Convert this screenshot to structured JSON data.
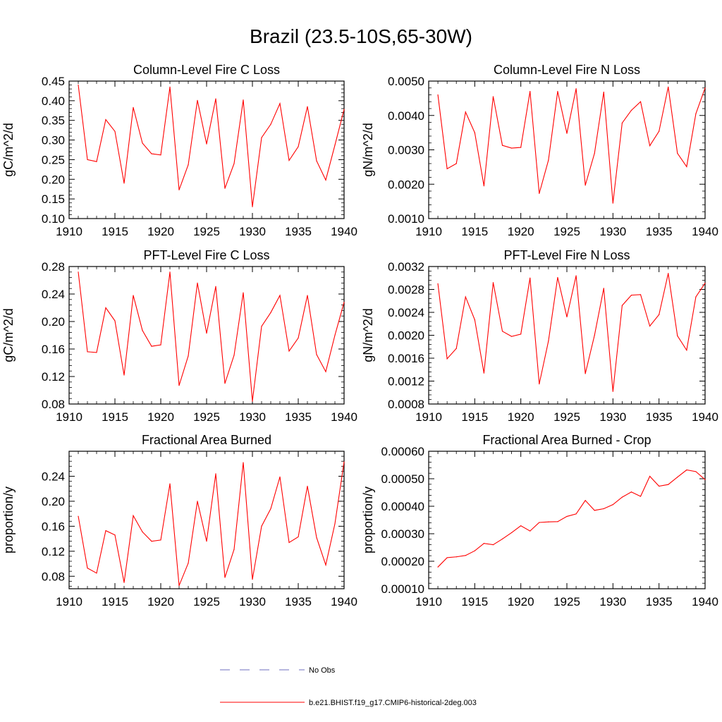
{
  "title": "Brazil (23.5-10S,65-30W)",
  "legend": {
    "items": [
      {
        "label": "No Obs",
        "color": "#6f6fbf",
        "dash": true
      },
      {
        "label": "b.e21.BHIST.f19_g17.CMIP6-historical-2deg.003",
        "color": "#ff0000",
        "dash": false
      }
    ]
  },
  "chart_data": [
    {
      "type": "line",
      "title": "Column-Level Fire C Loss",
      "ylabel": "gC/m^2/d",
      "xlim": [
        1910,
        1940
      ],
      "ylim": [
        0.1,
        0.45
      ],
      "xticks": [
        1910,
        1915,
        1920,
        1925,
        1930,
        1935,
        1940
      ],
      "xtick_labels": [
        "1910",
        "1915",
        "1920",
        "1925",
        "1930",
        "1935",
        "1940"
      ],
      "yticks": [
        0.1,
        0.15,
        0.2,
        0.25,
        0.3,
        0.35,
        0.4,
        0.45
      ],
      "ytick_labels": [
        "0.10",
        "0.15",
        "0.20",
        "0.25",
        "0.30",
        "0.35",
        "0.40",
        "0.45"
      ],
      "x": [
        1911,
        1912,
        1913,
        1914,
        1915,
        1916,
        1917,
        1918,
        1919,
        1920,
        1921,
        1922,
        1923,
        1924,
        1925,
        1926,
        1927,
        1928,
        1929,
        1930,
        1931,
        1932,
        1933,
        1934,
        1935,
        1936,
        1937,
        1938,
        1939,
        1940
      ],
      "series": [
        {
          "name": "b.e21.BHIST.f19_g17.CMIP6-historical-2deg.003",
          "color": "#ff0000",
          "values": [
            0.44,
            0.25,
            0.245,
            0.352,
            0.322,
            0.19,
            0.383,
            0.292,
            0.265,
            0.262,
            0.435,
            0.173,
            0.237,
            0.401,
            0.29,
            0.405,
            0.177,
            0.24,
            0.402,
            0.13,
            0.306,
            0.34,
            0.393,
            0.248,
            0.283,
            0.385,
            0.247,
            0.198,
            0.287,
            0.378
          ]
        }
      ]
    },
    {
      "type": "line",
      "title": "Column-Level Fire N Loss",
      "ylabel": "gN/m^2/d",
      "xlim": [
        1910,
        1940
      ],
      "ylim": [
        0.001,
        0.005
      ],
      "xticks": [
        1910,
        1915,
        1920,
        1925,
        1930,
        1935,
        1940
      ],
      "xtick_labels": [
        "1910",
        "1915",
        "1920",
        "1925",
        "1930",
        "1935",
        "1940"
      ],
      "yticks": [
        0.001,
        0.002,
        0.003,
        0.004,
        0.005
      ],
      "ytick_labels": [
        "0.0010",
        "0.0020",
        "0.0030",
        "0.0040",
        "0.0050"
      ],
      "x": [
        1911,
        1912,
        1913,
        1914,
        1915,
        1916,
        1917,
        1918,
        1919,
        1920,
        1921,
        1922,
        1923,
        1924,
        1925,
        1926,
        1927,
        1928,
        1929,
        1930,
        1931,
        1932,
        1933,
        1934,
        1935,
        1936,
        1937,
        1938,
        1939,
        1940
      ],
      "series": [
        {
          "name": "b.e21.BHIST.f19_g17.CMIP6-historical-2deg.003",
          "color": "#ff0000",
          "values": [
            0.0046,
            0.00245,
            0.0026,
            0.0041,
            0.0035,
            0.00195,
            0.00455,
            0.00313,
            0.00305,
            0.00307,
            0.0047,
            0.00173,
            0.0027,
            0.0047,
            0.00348,
            0.00478,
            0.00197,
            0.0029,
            0.00468,
            0.00145,
            0.00378,
            0.00415,
            0.0044,
            0.00312,
            0.00354,
            0.00483,
            0.0029,
            0.00251,
            0.00405,
            0.0048
          ]
        }
      ]
    },
    {
      "type": "line",
      "title": "PFT-Level Fire C Loss",
      "ylabel": "gC/m^2/d",
      "xlim": [
        1910,
        1940
      ],
      "ylim": [
        0.08,
        0.28
      ],
      "xticks": [
        1910,
        1915,
        1920,
        1925,
        1930,
        1935,
        1940
      ],
      "xtick_labels": [
        "1910",
        "1915",
        "1920",
        "1925",
        "1930",
        "1935",
        "1940"
      ],
      "yticks": [
        0.08,
        0.12,
        0.16,
        0.2,
        0.24,
        0.28
      ],
      "ytick_labels": [
        "0.08",
        "0.12",
        "0.16",
        "0.20",
        "0.24",
        "0.28"
      ],
      "x": [
        1911,
        1912,
        1913,
        1914,
        1915,
        1916,
        1917,
        1918,
        1919,
        1920,
        1921,
        1922,
        1923,
        1924,
        1925,
        1926,
        1927,
        1928,
        1929,
        1930,
        1931,
        1932,
        1933,
        1934,
        1935,
        1936,
        1937,
        1938,
        1939,
        1940
      ],
      "series": [
        {
          "name": "b.e21.BHIST.f19_g17.CMIP6-historical-2deg.003",
          "color": "#ff0000",
          "values": [
            0.272,
            0.156,
            0.155,
            0.22,
            0.201,
            0.122,
            0.238,
            0.187,
            0.164,
            0.166,
            0.272,
            0.107,
            0.15,
            0.256,
            0.183,
            0.251,
            0.11,
            0.151,
            0.242,
            0.084,
            0.193,
            0.213,
            0.238,
            0.157,
            0.176,
            0.238,
            0.152,
            0.127,
            0.18,
            0.228
          ]
        }
      ]
    },
    {
      "type": "line",
      "title": "PFT-Level Fire N Loss",
      "ylabel": "gN/m^2/d",
      "xlim": [
        1910,
        1940
      ],
      "ylim": [
        0.0008,
        0.0032
      ],
      "xticks": [
        1910,
        1915,
        1920,
        1925,
        1930,
        1935,
        1940
      ],
      "xtick_labels": [
        "1910",
        "1915",
        "1920",
        "1925",
        "1930",
        "1935",
        "1940"
      ],
      "yticks": [
        0.0008,
        0.0012,
        0.0016,
        0.002,
        0.0024,
        0.0028,
        0.0032
      ],
      "ytick_labels": [
        "0.0008",
        "0.0012",
        "0.0016",
        "0.0020",
        "0.0024",
        "0.0028",
        "0.0032"
      ],
      "x": [
        1911,
        1912,
        1913,
        1914,
        1915,
        1916,
        1917,
        1918,
        1919,
        1920,
        1921,
        1922,
        1923,
        1924,
        1925,
        1926,
        1927,
        1928,
        1929,
        1930,
        1931,
        1932,
        1933,
        1934,
        1935,
        1936,
        1937,
        1938,
        1939,
        1940
      ],
      "series": [
        {
          "name": "b.e21.BHIST.f19_g17.CMIP6-historical-2deg.003",
          "color": "#ff0000",
          "values": [
            0.0029,
            0.00159,
            0.00177,
            0.00267,
            0.00227,
            0.00134,
            0.00292,
            0.00207,
            0.00198,
            0.00202,
            0.003,
            0.00115,
            0.0019,
            0.00301,
            0.00232,
            0.00304,
            0.00133,
            0.002,
            0.00282,
            0.00102,
            0.00252,
            0.0027,
            0.00271,
            0.00216,
            0.00236,
            0.00308,
            0.00199,
            0.00174,
            0.00267,
            0.00291
          ]
        }
      ]
    },
    {
      "type": "line",
      "title": "Fractional Area Burned",
      "ylabel": "proportion/y",
      "xlim": [
        1910,
        1940
      ],
      "ylim": [
        0.06,
        0.28
      ],
      "xticks": [
        1910,
        1915,
        1920,
        1925,
        1930,
        1935,
        1940
      ],
      "xtick_labels": [
        "1910",
        "1915",
        "1920",
        "1925",
        "1930",
        "1935",
        "1940"
      ],
      "yticks": [
        0.08,
        0.12,
        0.16,
        0.2,
        0.24
      ],
      "ytick_labels": [
        "0.08",
        "0.12",
        "0.16",
        "0.20",
        "0.24"
      ],
      "x": [
        1911,
        1912,
        1913,
        1914,
        1915,
        1916,
        1917,
        1918,
        1919,
        1920,
        1921,
        1922,
        1923,
        1924,
        1925,
        1926,
        1927,
        1928,
        1929,
        1930,
        1931,
        1932,
        1933,
        1934,
        1935,
        1936,
        1937,
        1938,
        1939,
        1940
      ],
      "series": [
        {
          "name": "b.e21.BHIST.f19_g17.CMIP6-historical-2deg.003",
          "color": "#ff0000",
          "values": [
            0.176,
            0.093,
            0.085,
            0.153,
            0.146,
            0.07,
            0.177,
            0.151,
            0.136,
            0.138,
            0.228,
            0.065,
            0.101,
            0.2,
            0.136,
            0.244,
            0.078,
            0.123,
            0.262,
            0.075,
            0.16,
            0.188,
            0.239,
            0.134,
            0.143,
            0.224,
            0.142,
            0.098,
            0.164,
            0.263
          ]
        }
      ]
    },
    {
      "type": "line",
      "title": "Fractional Area Burned - Crop",
      "ylabel": "proportion/y",
      "xlim": [
        1910,
        1940
      ],
      "ylim": [
        0.0001,
        0.0006
      ],
      "xticks": [
        1910,
        1915,
        1920,
        1925,
        1930,
        1935,
        1940
      ],
      "xtick_labels": [
        "1910",
        "1915",
        "1920",
        "1925",
        "1930",
        "1935",
        "1940"
      ],
      "yticks": [
        0.0001,
        0.0002,
        0.0003,
        0.0004,
        0.0005,
        0.0006
      ],
      "ytick_labels": [
        "0.00010",
        "0.00020",
        "0.00030",
        "0.00040",
        "0.00050",
        "0.00060"
      ],
      "x": [
        1911,
        1912,
        1913,
        1914,
        1915,
        1916,
        1917,
        1918,
        1919,
        1920,
        1921,
        1922,
        1923,
        1924,
        1925,
        1926,
        1927,
        1928,
        1929,
        1930,
        1931,
        1932,
        1933,
        1934,
        1935,
        1936,
        1937,
        1938,
        1939,
        1940
      ],
      "series": [
        {
          "name": "b.e21.BHIST.f19_g17.CMIP6-historical-2deg.003",
          "color": "#ff0000",
          "values": [
            0.000179,
            0.000213,
            0.000216,
            0.000221,
            0.000238,
            0.000265,
            0.00026,
            0.000281,
            0.000304,
            0.000329,
            0.00031,
            0.000341,
            0.000343,
            0.000344,
            0.000363,
            0.000372,
            0.000421,
            0.000385,
            0.000391,
            0.000406,
            0.000433,
            0.000452,
            0.000436,
            0.000509,
            0.000473,
            0.000479,
            0.000506,
            0.000532,
            0.000526,
            0.000497
          ]
        }
      ]
    }
  ]
}
